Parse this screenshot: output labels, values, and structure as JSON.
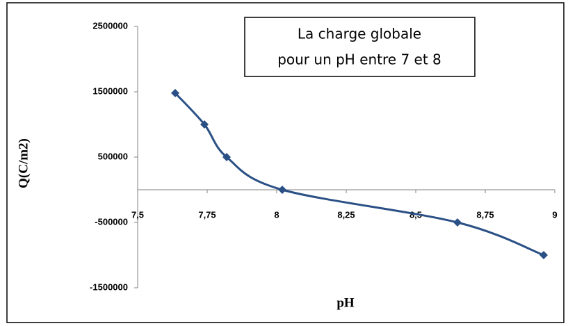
{
  "chart_data": {
    "type": "line",
    "title": [
      "La charge globale",
      "pour un pH entre 7 et 8"
    ],
    "x_label": "pH",
    "y_label": "Q(C/m2)",
    "x": [
      7.635,
      7.74,
      7.82,
      8.02,
      8.65,
      8.96
    ],
    "values": [
      1480000,
      1000000,
      500000,
      0,
      -500000,
      -1000000
    ],
    "color": "#2a5085",
    "smooth": true,
    "xlim": [
      7.5,
      9
    ],
    "xticks": [
      {
        "value": 7.5,
        "label": "7,5"
      },
      {
        "value": 7.75,
        "label": "7,75"
      },
      8,
      {
        "value": 8.25,
        "label": "8,25"
      },
      {
        "value": 8.5,
        "label": "8,5"
      },
      {
        "value": 8.75,
        "label": "8,75"
      },
      9
    ],
    "ylim": [
      -1500000,
      2500000
    ],
    "yticks": [
      -1500000,
      -500000,
      500000,
      1500000,
      2500000
    ],
    "grid": false
  }
}
